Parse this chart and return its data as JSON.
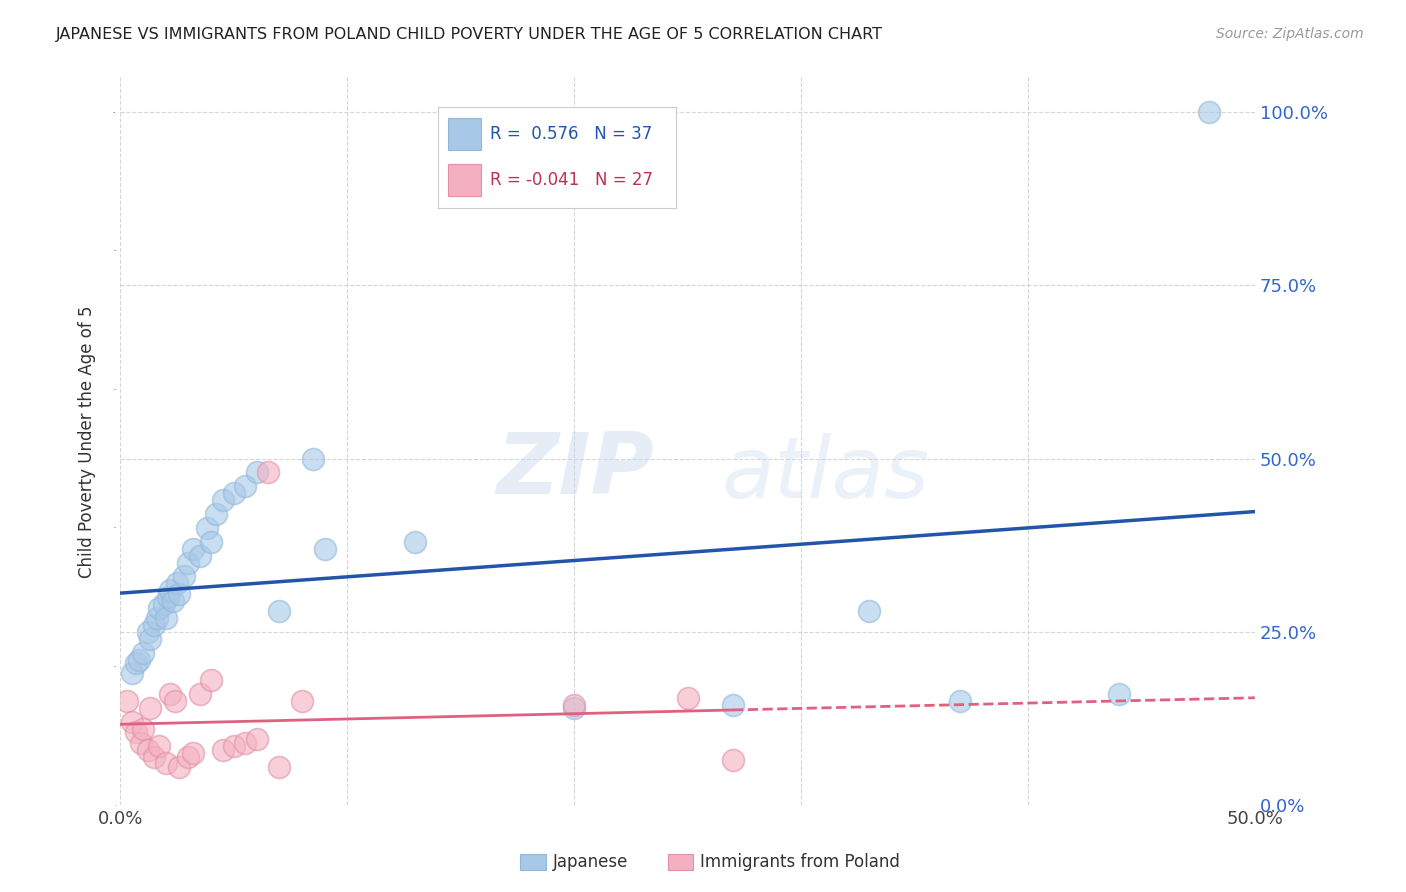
{
  "title": "JAPANESE VS IMMIGRANTS FROM POLAND CHILD POVERTY UNDER THE AGE OF 5 CORRELATION CHART",
  "source": "Source: ZipAtlas.com",
  "ylabel": "Child Poverty Under the Age of 5",
  "blue_R": 0.576,
  "blue_N": 37,
  "pink_R": -0.041,
  "pink_N": 27,
  "blue_color": "#a8c8e8",
  "pink_color": "#f4b0c0",
  "blue_line_color": "#2255aa",
  "pink_line_color": "#e06080",
  "blue_scatter": [
    [
      0.5,
      19.0
    ],
    [
      0.7,
      20.5
    ],
    [
      0.8,
      21.0
    ],
    [
      1.0,
      22.0
    ],
    [
      1.2,
      25.0
    ],
    [
      1.3,
      24.0
    ],
    [
      1.5,
      26.0
    ],
    [
      1.6,
      27.0
    ],
    [
      1.7,
      28.5
    ],
    [
      1.9,
      29.0
    ],
    [
      2.0,
      27.0
    ],
    [
      2.1,
      30.0
    ],
    [
      2.2,
      31.0
    ],
    [
      2.3,
      29.5
    ],
    [
      2.5,
      32.0
    ],
    [
      2.6,
      30.5
    ],
    [
      2.8,
      33.0
    ],
    [
      3.0,
      35.0
    ],
    [
      3.2,
      37.0
    ],
    [
      3.5,
      36.0
    ],
    [
      3.8,
      40.0
    ],
    [
      4.0,
      38.0
    ],
    [
      4.2,
      42.0
    ],
    [
      4.5,
      44.0
    ],
    [
      5.0,
      45.0
    ],
    [
      5.5,
      46.0
    ],
    [
      6.0,
      48.0
    ],
    [
      7.0,
      28.0
    ],
    [
      8.5,
      50.0
    ],
    [
      9.0,
      37.0
    ],
    [
      13.0,
      38.0
    ],
    [
      20.0,
      14.0
    ],
    [
      27.0,
      14.5
    ],
    [
      33.0,
      28.0
    ],
    [
      37.0,
      15.0
    ],
    [
      44.0,
      16.0
    ],
    [
      48.0,
      100.0
    ]
  ],
  "pink_scatter": [
    [
      0.3,
      15.0
    ],
    [
      0.5,
      12.0
    ],
    [
      0.7,
      10.5
    ],
    [
      0.9,
      9.0
    ],
    [
      1.0,
      11.0
    ],
    [
      1.2,
      8.0
    ],
    [
      1.3,
      14.0
    ],
    [
      1.5,
      7.0
    ],
    [
      1.7,
      8.5
    ],
    [
      2.0,
      6.0
    ],
    [
      2.2,
      16.0
    ],
    [
      2.4,
      15.0
    ],
    [
      2.6,
      5.5
    ],
    [
      3.0,
      7.0
    ],
    [
      3.2,
      7.5
    ],
    [
      3.5,
      16.0
    ],
    [
      4.0,
      18.0
    ],
    [
      4.5,
      8.0
    ],
    [
      5.0,
      8.5
    ],
    [
      5.5,
      9.0
    ],
    [
      6.0,
      9.5
    ],
    [
      6.5,
      48.0
    ],
    [
      7.0,
      5.5
    ],
    [
      8.0,
      15.0
    ],
    [
      20.0,
      14.5
    ],
    [
      25.0,
      15.5
    ],
    [
      27.0,
      6.5
    ]
  ],
  "xmin": 0.0,
  "xmax": 50.0,
  "ymin": 0.0,
  "ymax": 105.0,
  "yticks": [
    0.0,
    25.0,
    50.0,
    75.0,
    100.0
  ],
  "ytick_labels": [
    "0.0%",
    "25.0%",
    "50.0%",
    "75.0%",
    "100.0%"
  ],
  "xticks": [
    0.0,
    10.0,
    20.0,
    30.0,
    40.0,
    50.0
  ],
  "xtick_labels": [
    "0.0%",
    "",
    "",
    "",
    "",
    "50.0%"
  ],
  "grid_color": "#cccccc",
  "background_color": "#ffffff",
  "watermark_zip": "ZIP",
  "watermark_atlas": "atlas"
}
